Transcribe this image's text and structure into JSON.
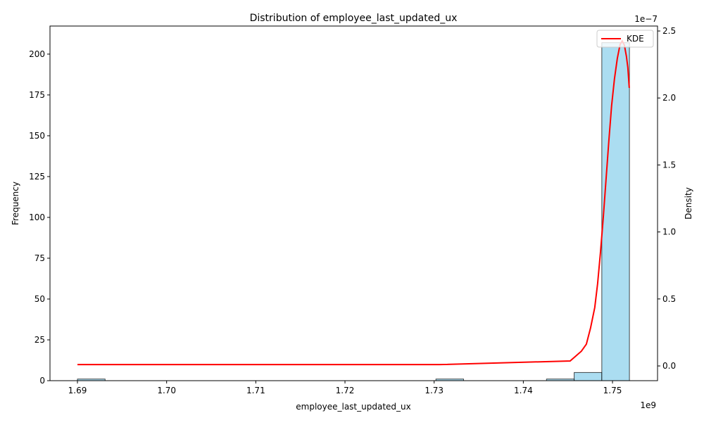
{
  "chart_data": {
    "type": "histogram",
    "title": "Distribution of employee_last_updated_ux",
    "xlabel": "employee_last_updated_ux",
    "ylabel": "Frequency",
    "y2label": "Density",
    "x_offset_label": "1e9",
    "y2_offset_label": "1e−7",
    "bins": [
      1.69,
      1.6931,
      1.6962,
      1.6993,
      1.7024,
      1.7055,
      1.7086,
      1.7117,
      1.7148,
      1.7178,
      1.7209,
      1.724,
      1.7271,
      1.7302,
      1.7333,
      1.7364,
      1.7395,
      1.7426,
      1.7457,
      1.7488,
      1.7519
    ],
    "counts": [
      1,
      0,
      0,
      0,
      0,
      0,
      0,
      0,
      0,
      0,
      0,
      0,
      0,
      1,
      0,
      0,
      0,
      1,
      5,
      207
    ],
    "color": "#87ceeb",
    "series": [
      {
        "name": "KDE",
        "color": "#ff0000",
        "axis": "y2",
        "x": [
          1.69,
          1.7306,
          1.74525,
          1.74651,
          1.74707,
          1.74754,
          1.74801,
          1.74833,
          1.74864,
          1.74896,
          1.74927,
          1.74959,
          1.7499,
          1.75022,
          1.75054,
          1.75085,
          1.75109,
          1.75133,
          1.75156,
          1.75172,
          1.75188
        ],
        "values": [
          0.01,
          0.01,
          0.037,
          0.11,
          0.163,
          0.284,
          0.436,
          0.614,
          0.84,
          1.103,
          1.387,
          1.68,
          1.943,
          2.143,
          2.295,
          2.4,
          2.426,
          2.395,
          2.311,
          2.227,
          2.075
        ]
      }
    ],
    "xlim": [
      1.68692,
      1.75505
    ],
    "ylim": [
      0,
      217.2
    ],
    "y2lim": [
      -0.11,
      2.537
    ],
    "xticks": [
      1.69,
      {
        "value": 1.7,
        "label": "1.70"
      },
      1.71,
      1.72,
      1.73,
      1.74,
      1.75
    ],
    "yticks": [
      0,
      25,
      50,
      75,
      100,
      125,
      150,
      175,
      200
    ],
    "y2ticks": [
      {
        "value": 0,
        "label": "0.0"
      },
      0.5,
      {
        "value": 1,
        "label": "1.0"
      },
      1.5,
      {
        "value": 2,
        "label": "2.0"
      },
      2.5
    ],
    "legend": "upper right"
  }
}
